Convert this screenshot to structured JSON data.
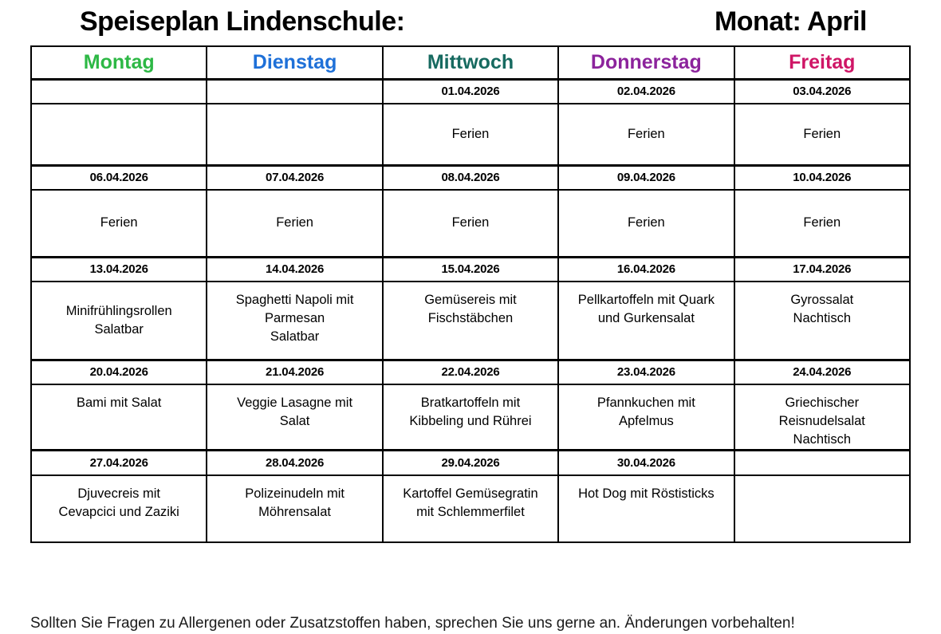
{
  "title": {
    "main": "Speiseplan Lindenschule:",
    "month": "Monat: April"
  },
  "table": {
    "headers": [
      {
        "label": "Montag",
        "color": "#2db845"
      },
      {
        "label": "Dienstag",
        "color": "#1e70d8"
      },
      {
        "label": "Mittwoch",
        "color": "#176a60"
      },
      {
        "label": "Donnerstag",
        "color": "#8c239c"
      },
      {
        "label": "Freitag",
        "color": "#cf1666"
      }
    ],
    "weeks": [
      {
        "dates": [
          "",
          "",
          "01.04.2026",
          "02.04.2026",
          "03.04.2026"
        ],
        "meals": [
          "",
          "",
          "Ferien",
          "Ferien",
          "Ferien"
        ]
      },
      {
        "dates": [
          "06.04.2026",
          "07.04.2026",
          "08.04.2026",
          "09.04.2026",
          "10.04.2026"
        ],
        "meals": [
          "Ferien",
          "Ferien",
          "Ferien",
          "Ferien",
          "Ferien"
        ]
      },
      {
        "dates": [
          "13.04.2026",
          "14.04.2026",
          "15.04.2026",
          "16.04.2026",
          "17.04.2026"
        ],
        "meals": [
          "Minifrühlingsrollen\nSalatbar",
          "Spaghetti Napoli mit\nParmesan\nSalatbar",
          "Gemüsereis mit\nFischstäbchen",
          "Pellkartoffeln mit Quark\nund Gurkensalat",
          "Gyrossalat\nNachtisch"
        ]
      },
      {
        "dates": [
          "20.04.2026",
          "21.04.2026",
          "22.04.2026",
          "23.04.2026",
          "24.04.2026"
        ],
        "meals": [
          "Bami mit Salat",
          "Veggie Lasagne mit\nSalat",
          "Bratkartoffeln mit\nKibbeling und Rührei",
          "Pfannkuchen mit\nApfelmus",
          "Griechischer\nReisnudelsalat\nNachtisch"
        ]
      },
      {
        "dates": [
          "27.04.2026",
          "28.04.2026",
          "29.04.2026",
          "30.04.2026",
          ""
        ],
        "meals": [
          "Djuvecreis mit\nCevapcici und Zaziki",
          "Polizeinudeln mit\nMöhrensalat",
          "Kartoffel Gemüsegratin\nmit Schlemmerfilet",
          "Hot Dog mit Röstisticks",
          ""
        ]
      }
    ]
  },
  "footer": "Sollten Sie Fragen zu Allergenen oder Zusatzstoffen haben, sprechen Sie uns gerne an. Änderungen vorbehalten!"
}
